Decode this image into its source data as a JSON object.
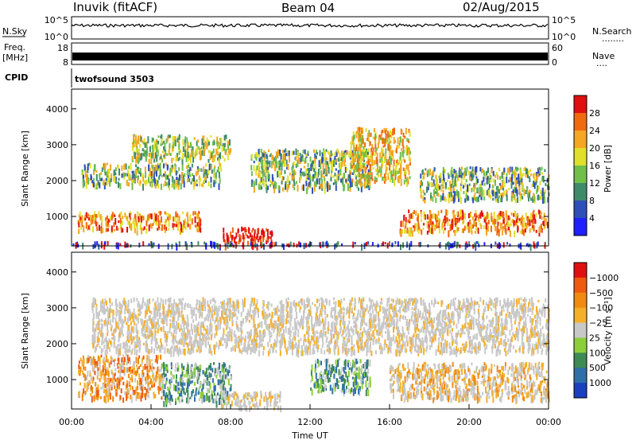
{
  "header": {
    "station": "Inuvik (fitACF)",
    "beam": "Beam 04",
    "date": "02/Aug/2015"
  },
  "top_panels": {
    "nsky_label": "N.Sky",
    "nsky_ticks": [
      "10^5",
      "10^0"
    ],
    "nsearch_label": "N.Search",
    "nsearch_ticks": [
      "10^5",
      "10^0"
    ],
    "freq_label_1": "Freq.",
    "freq_label_2": "[MHz]",
    "freq_ticks": [
      "18",
      "8"
    ],
    "nave_label": "Nave",
    "nave_ticks": [
      "60",
      "0"
    ],
    "cpid_label": "CPID",
    "cpid_value": "twofsound 3503",
    "nsearch_legend_dots": "........",
    "nave_legend_dots": "...."
  },
  "axes": {
    "ylabel": "Slant Range [km]",
    "xlabel": "Time UT",
    "y_ticks": [
      "1000",
      "2000",
      "3000",
      "4000"
    ],
    "x_ticks": [
      "00:00",
      "04:00",
      "08:00",
      "12:00",
      "16:00",
      "20:00",
      "00:00"
    ],
    "ylim": [
      180,
      4550
    ],
    "xlim": [
      0,
      24
    ]
  },
  "chart_data": [
    {
      "type": "heatmap",
      "name": "power",
      "colorbar_label": "Power [dB]",
      "colorbar_ticks": [
        "4",
        "8",
        "12",
        "16",
        "20",
        "24",
        "28"
      ],
      "colorbar_colors": [
        "#1f1fff",
        "#2e4fb8",
        "#3f8a6a",
        "#6fbf4a",
        "#e0e02a",
        "#f5a623",
        "#f06a10",
        "#e01010"
      ],
      "x_units": "hours UT",
      "y_units": "km",
      "echo_regions": [
        {
          "x": [
            0.3,
            6.5
          ],
          "y": [
            650,
            1150
          ],
          "level": "orange-red"
        },
        {
          "x": [
            0.5,
            7.5
          ],
          "y": [
            1900,
            2500
          ],
          "level": "orange-green"
        },
        {
          "x": [
            3.0,
            8.0
          ],
          "y": [
            2600,
            3300
          ],
          "level": "yellow-green"
        },
        {
          "x": [
            7.6,
            10.2
          ],
          "y": [
            220,
            720
          ],
          "level": "red"
        },
        {
          "x": [
            9.0,
            15.0
          ],
          "y": [
            1800,
            2900
          ],
          "level": "green-orange"
        },
        {
          "x": [
            14.0,
            17.0
          ],
          "y": [
            2000,
            3500
          ],
          "level": "orange"
        },
        {
          "x": [
            16.5,
            24.0
          ],
          "y": [
            600,
            1200
          ],
          "level": "orange-red"
        },
        {
          "x": [
            17.5,
            24.0
          ],
          "y": [
            1500,
            2400
          ],
          "level": "green-orange"
        },
        {
          "x": [
            0.0,
            24.0
          ],
          "y": [
            220,
            320
          ],
          "level": "blue-red speckle"
        }
      ]
    },
    {
      "type": "heatmap",
      "name": "velocity",
      "colorbar_label": "Velocity [m s⁻¹]",
      "colorbar_ticks": [
        "1000",
        "500",
        "100",
        "25",
        "−25",
        "−100",
        "−500",
        "−1000"
      ],
      "colorbar_colors": [
        "#1a3fbf",
        "#2e6fa8",
        "#3e8a55",
        "#8ccf3a",
        "#c8c8c8",
        "#f5b02a",
        "#f08a10",
        "#f05a10",
        "#e01010"
      ],
      "x_units": "hours UT",
      "y_units": "km",
      "echo_regions": [
        {
          "x": [
            0.3,
            4.5
          ],
          "y": [
            500,
            1700
          ],
          "level": "orange (-100 to -500)"
        },
        {
          "x": [
            4.5,
            8.0
          ],
          "y": [
            400,
            1500
          ],
          "level": "green (100 to 500)"
        },
        {
          "x": [
            7.5,
            10.5
          ],
          "y": [
            250,
            700
          ],
          "level": "gray (-25 to 25)"
        },
        {
          "x": [
            1.0,
            24.0
          ],
          "y": [
            1800,
            3300
          ],
          "level": "gray (-25 to 25)"
        },
        {
          "x": [
            12.0,
            15.0
          ],
          "y": [
            700,
            1600
          ],
          "level": "green (100 to 500)"
        },
        {
          "x": [
            16.0,
            24.0
          ],
          "y": [
            500,
            1500
          ],
          "level": "gray / orange"
        }
      ]
    }
  ]
}
